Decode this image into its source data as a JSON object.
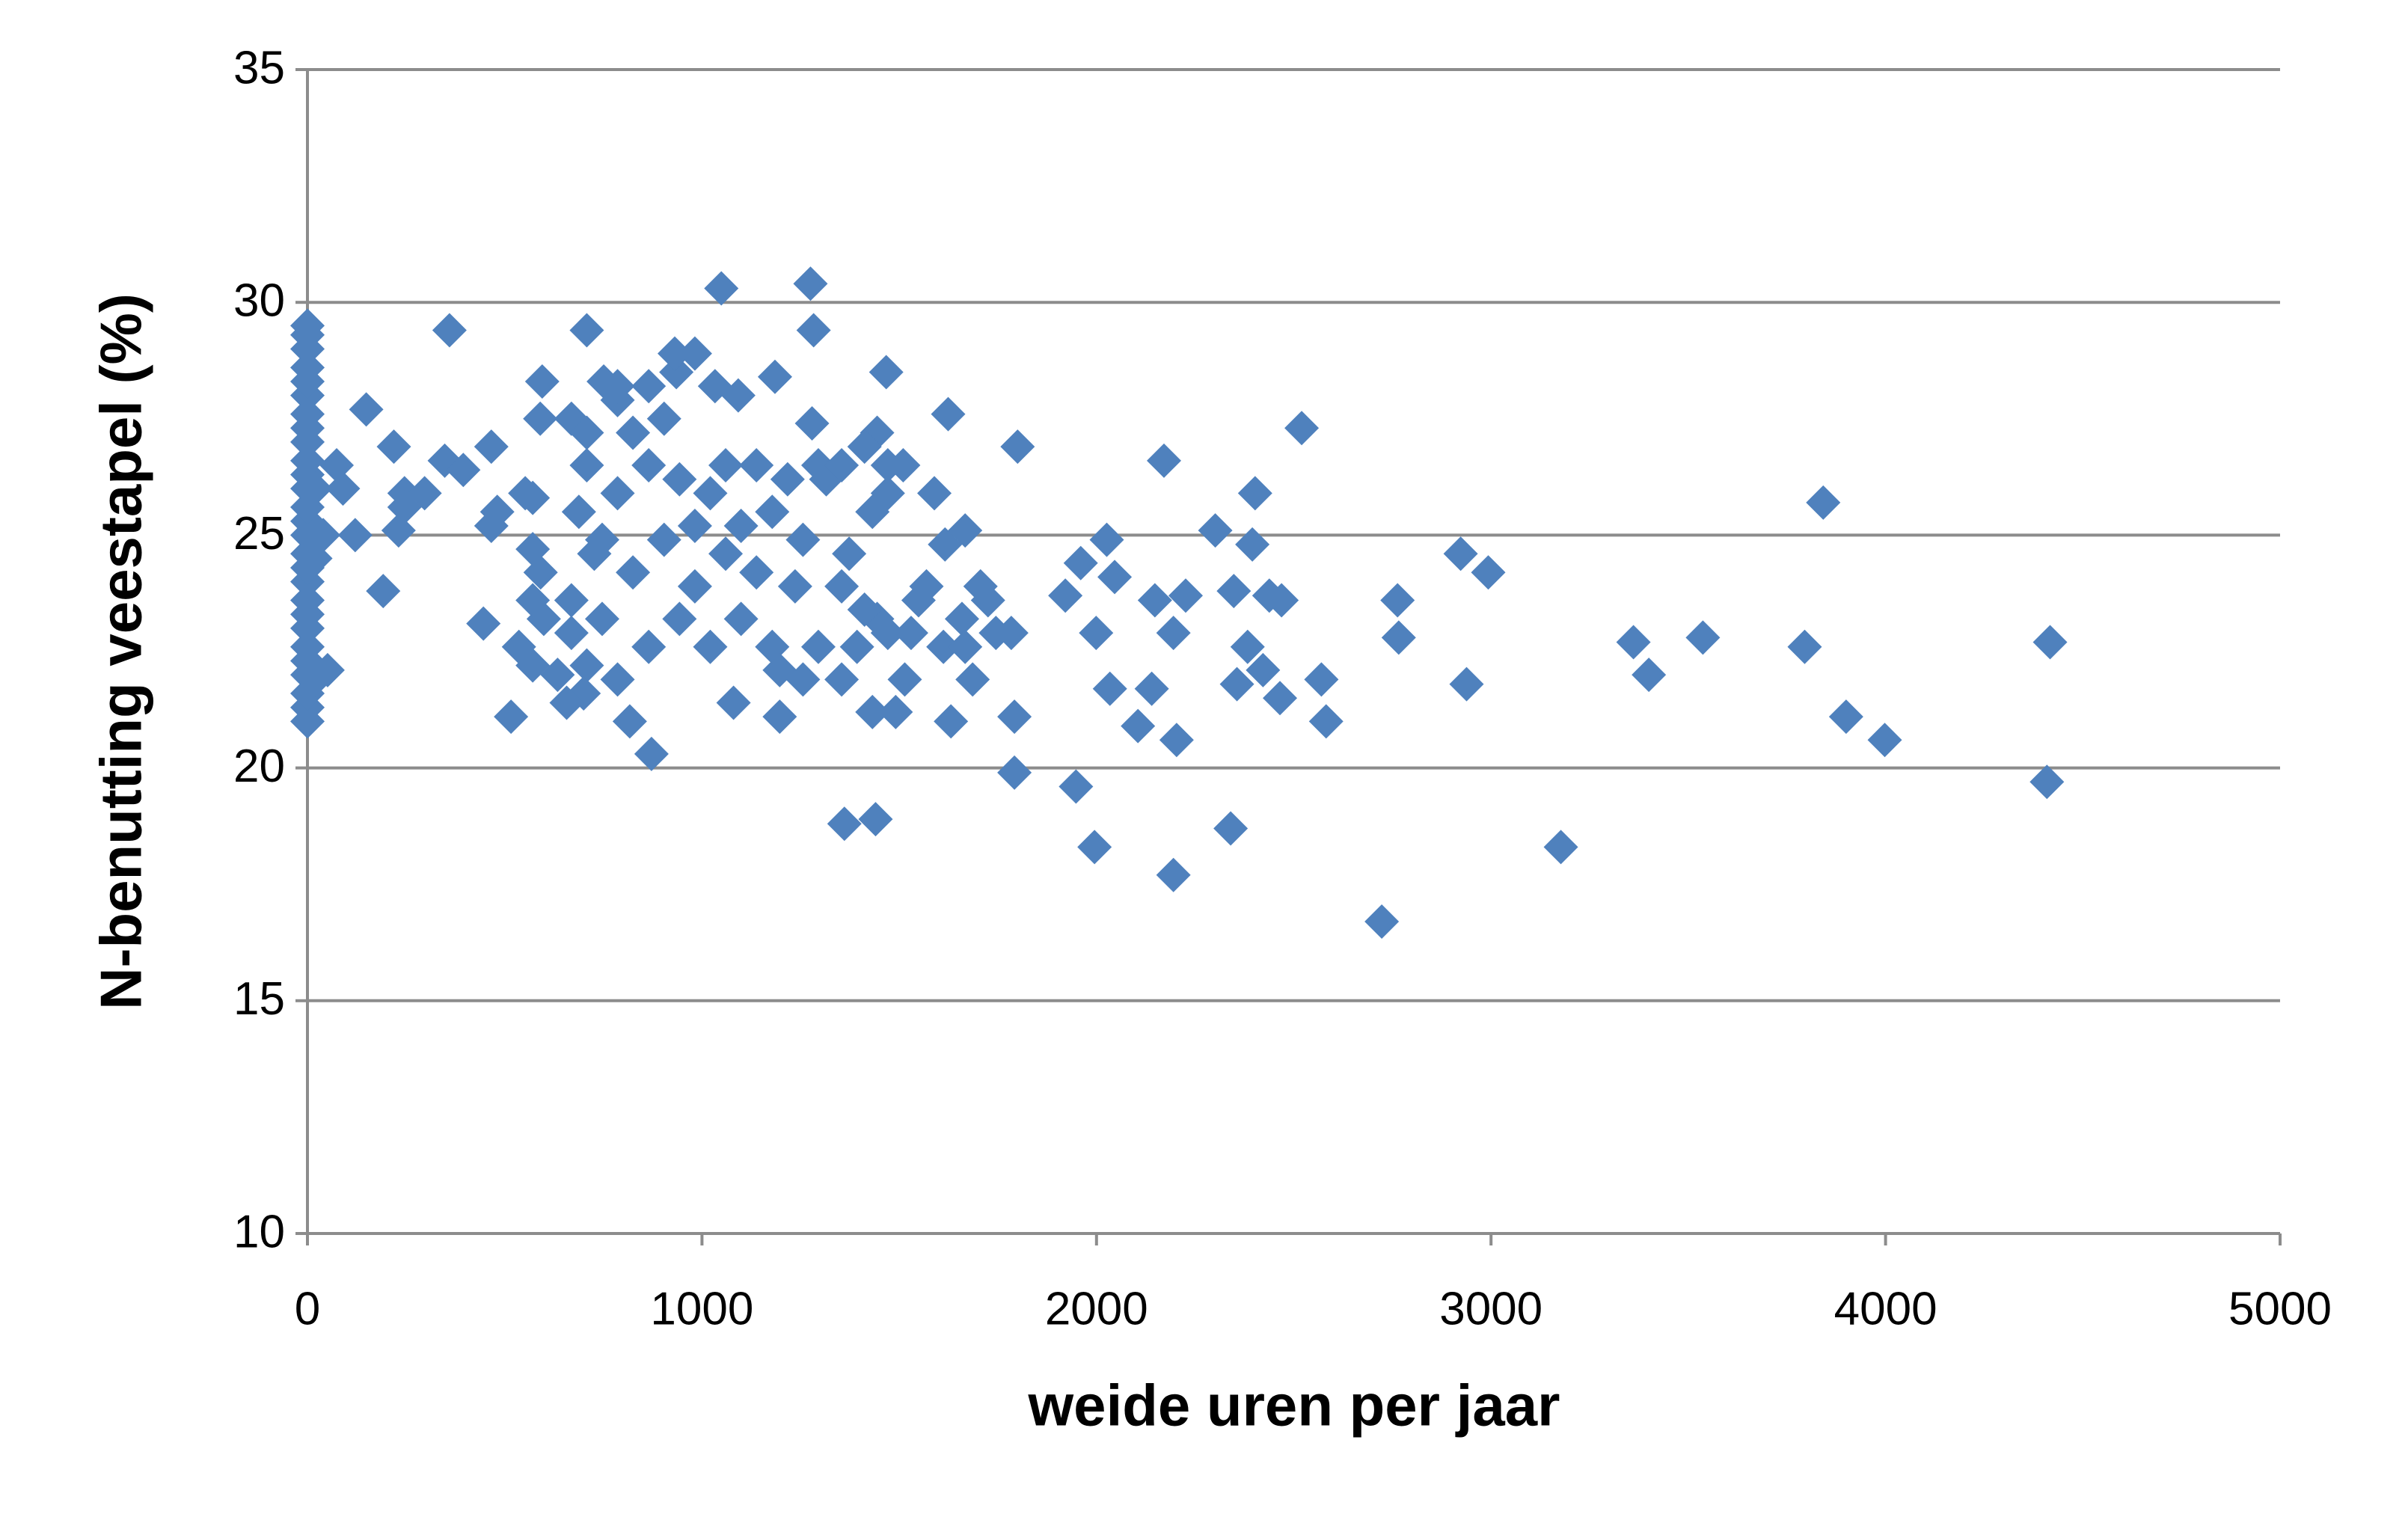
{
  "chart_data": {
    "type": "scatter",
    "x_label": "weide uren per jaar",
    "y_label": "N-benutting veestapel (%)",
    "color": "#4f81bd",
    "xlim": [
      0,
      5000
    ],
    "xticks": [
      0,
      1000,
      2000,
      3000,
      4000,
      5000
    ],
    "ylim": [
      10,
      35
    ],
    "yticks": [
      10,
      15,
      20,
      25,
      30,
      35
    ],
    "grid": true,
    "x": [
      0,
      0,
      0,
      0,
      0,
      0,
      0,
      0,
      0,
      0,
      0,
      0,
      0,
      0,
      0,
      0,
      0,
      0,
      0,
      0,
      0,
      0,
      0,
      0,
      0,
      0,
      0,
      20,
      20,
      20,
      40,
      360,
      708,
      1049,
      1275,
      1283,
      149,
      219,
      1800,
      1624,
      2171,
      2520,
      2402,
      3842,
      2923,
      2993,
      2763,
      2766,
      2938,
      2570,
      2582,
      3361,
      3400,
      3537,
      3795,
      3900,
      3998,
      4417,
      4409,
      3177,
      2723,
      2340,
      2195,
      1995,
      1948,
      1792,
      1792,
      1361,
      1440,
      872,
      817,
      516,
      192,
      121,
      446,
      1080,
      1197,
      1467,
      935,
      1033,
      1185,
      751,
      595,
      590,
      466,
      348,
      246,
      231,
      466,
      571,
      599,
      634,
      2301,
      2395,
      2438,
      2383,
      2469,
      2348,
      2356,
      2465,
      2422,
      2105,
      2203,
      2140,
      2148,
      2226,
      2195,
      2026,
      1999,
      2034,
      2046,
      1960,
      1921,
      1784,
      1725,
      1667,
      1589,
      1510,
      1491,
      1631,
      1686,
      1612,
      1659,
      1569,
      1616,
      1432,
      1444,
      1279,
      1471,
      1354,
      1393,
      1514,
      1432,
      1444,
      1354,
      1373,
      1295,
      1236,
      1256,
      1178,
      1138,
      1092,
      1060,
      1021,
      943,
      865,
      825,
      786,
      708,
      688,
      727,
      747,
      708,
      700,
      657,
      786,
      865,
      943,
      1021,
      1099,
      1178,
      1256,
      1197,
      982,
      1060,
      1138,
      904,
      825,
      747,
      982,
      1099,
      1217,
      1295,
      904,
      786,
      931,
      982,
      865,
      591,
      571,
      571,
      536,
      669,
      669,
      1412,
      1471,
      1530,
      1549,
      1667,
      1706,
      1745,
      74,
      90,
      51,
      246,
      297,
      395,
      481,
      552,
      571,
      669,
      708,
      786,
      1315,
      1354,
      1412,
      1471
    ],
    "y": [
      21.0,
      21.3,
      21.6,
      22.0,
      22.3,
      22.6,
      23.0,
      23.3,
      23.6,
      24.0,
      24.3,
      24.6,
      25.0,
      25.3,
      25.6,
      26.0,
      26.3,
      26.6,
      27.0,
      27.3,
      27.6,
      28.0,
      28.3,
      28.6,
      29.0,
      29.3,
      29.5,
      21.9,
      24.5,
      26.0,
      25.0,
      29.4,
      29.4,
      30.3,
      30.4,
      29.4,
      27.7,
      26.9,
      26.9,
      27.6,
      26.6,
      27.3,
      25.9,
      25.7,
      24.6,
      24.2,
      23.6,
      22.8,
      21.8,
      21.9,
      21.0,
      22.7,
      22.0,
      22.8,
      22.6,
      21.1,
      20.6,
      22.7,
      19.7,
      18.3,
      16.7,
      18.7,
      17.7,
      18.3,
      19.6,
      19.9,
      21.1,
      18.8,
      18.9,
      20.3,
      21.0,
      21.1,
      23.8,
      25.0,
      23.1,
      21.4,
      21.1,
      28.5,
      28.5,
      28.2,
      28.4,
      28.3,
      28.3,
      27.5,
      26.9,
      26.6,
      25.9,
      25.1,
      25.2,
      25.8,
      23.2,
      22.0,
      25.1,
      24.8,
      23.7,
      22.6,
      23.6,
      23.8,
      21.8,
      21.5,
      22.1,
      20.9,
      20.6,
      21.7,
      23.6,
      23.7,
      22.9,
      24.9,
      22.9,
      21.7,
      24.1,
      24.4,
      23.7,
      22.9,
      23.6,
      25.1,
      25.9,
      26.5,
      21.2,
      21.0,
      21.9,
      22.6,
      23.2,
      23.9,
      24.8,
      25.5,
      27.2,
      27.4,
      25.9,
      21.9,
      22.6,
      21.9,
      21.2,
      23.2,
      23.9,
      24.6,
      22.6,
      23.9,
      24.9,
      25.5,
      26.5,
      28.0,
      26.5,
      25.9,
      26.2,
      26.5,
      27.2,
      25.9,
      26.5,
      25.5,
      24.6,
      23.2,
      22.2,
      21.6,
      21.4,
      21.9,
      22.6,
      23.2,
      22.6,
      23.2,
      22.6,
      21.9,
      22.1,
      23.9,
      24.6,
      24.2,
      24.9,
      24.2,
      24.9,
      25.2,
      25.2,
      26.2,
      26.5,
      27.5,
      27.9,
      28.9,
      28.9,
      28.2,
      24.2,
      24.7,
      23.6,
      22.6,
      23.6,
      22.9,
      23.4,
      22.9,
      22.9,
      23.6,
      22.6,
      23.9,
      22.9,
      26.5,
      26.0,
      22.1,
      25.6,
      25.9,
      26.4,
      25.5,
      25.9,
      22.2,
      27.5,
      27.2,
      28.2,
      26.2,
      26.5,
      26.9,
      26.5
    ]
  }
}
